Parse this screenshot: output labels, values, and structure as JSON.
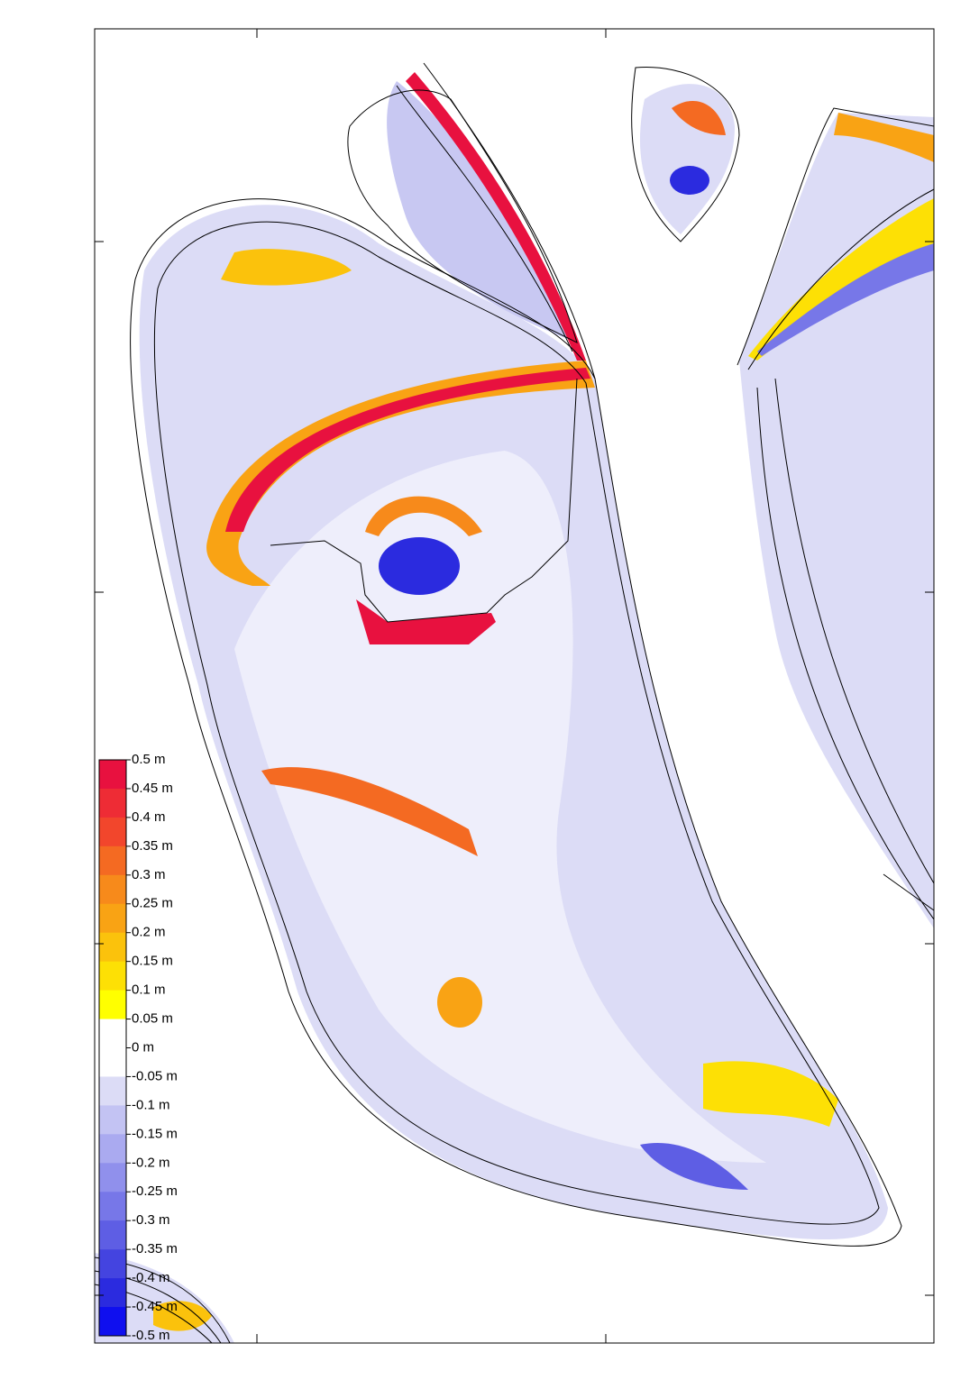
{
  "colorbar": {
    "ticks": [
      {
        "value": 0.5,
        "label": "0.5 m"
      },
      {
        "value": 0.45,
        "label": "0.45 m"
      },
      {
        "value": 0.4,
        "label": "0.4 m"
      },
      {
        "value": 0.35,
        "label": "0.35 m"
      },
      {
        "value": 0.3,
        "label": "0.3 m"
      },
      {
        "value": 0.25,
        "label": "0.25 m"
      },
      {
        "value": 0.2,
        "label": "0.2 m"
      },
      {
        "value": 0.15,
        "label": "0.15 m"
      },
      {
        "value": 0.1,
        "label": "0.1 m"
      },
      {
        "value": 0.05,
        "label": "0.05 m"
      },
      {
        "value": 0,
        "label": "0 m"
      },
      {
        "value": -0.05,
        "label": "-0.05 m"
      },
      {
        "value": -0.1,
        "label": "-0.1 m"
      },
      {
        "value": -0.15,
        "label": "-0.15 m"
      },
      {
        "value": -0.2,
        "label": "-0.2 m"
      },
      {
        "value": -0.25,
        "label": "-0.25 m"
      },
      {
        "value": -0.3,
        "label": "-0.3 m"
      },
      {
        "value": -0.35,
        "label": "-0.35 m"
      },
      {
        "value": -0.4,
        "label": "-0.4 m"
      },
      {
        "value": -0.45,
        "label": "-0.45 m"
      },
      {
        "value": -0.5,
        "label": "-0.5 m"
      }
    ],
    "colors": [
      "#e8113f",
      "#ee2c35",
      "#f2462c",
      "#f46a22",
      "#f78a1b",
      "#f9a314",
      "#fbc20c",
      "#fde005",
      "#ffff00",
      "#ffffff",
      "#ffffff",
      "#dcdcf6",
      "#c3c3f3",
      "#aaaaf0",
      "#9090ec",
      "#7777e8",
      "#5e5ee4",
      "#4444e0",
      "#2b2bdf",
      "#0f0fef"
    ]
  }
}
